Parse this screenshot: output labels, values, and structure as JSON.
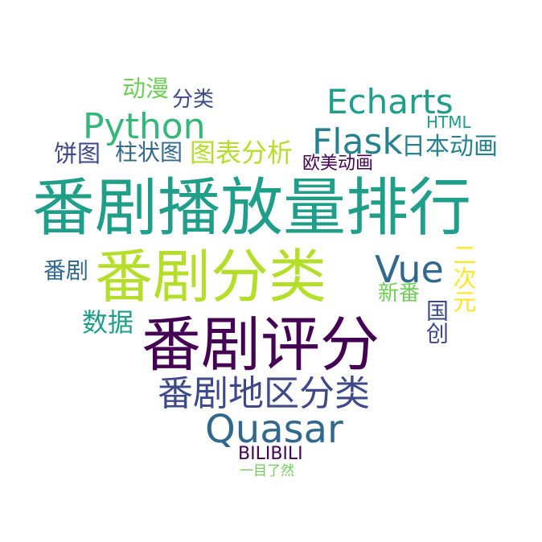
{
  "words": [
    {
      "id": "w-fanjubofangliang",
      "text": "番剧播放量排行",
      "color": "#1f9e89"
    },
    {
      "id": "w-fanjufenlei",
      "text": "番剧分类",
      "color": "#b5de2b"
    },
    {
      "id": "w-fanjupingfen",
      "text": "番剧评分",
      "color": "#440154"
    },
    {
      "id": "w-fanjudiqu",
      "text": "番剧地区分类",
      "color": "#3e4989"
    },
    {
      "id": "w-quasar",
      "text": "Quasar",
      "color": "#31688e"
    },
    {
      "id": "w-python",
      "text": "Python",
      "color": "#35b779"
    },
    {
      "id": "w-echarts",
      "text": "Echarts",
      "color": "#1f9e89"
    },
    {
      "id": "w-flask",
      "text": "Flask",
      "color": "#26828e"
    },
    {
      "id": "w-vue",
      "text": "Vue",
      "color": "#31688e"
    },
    {
      "id": "w-tubiaofenxi",
      "text": "图表分析",
      "color": "#b5de2b"
    },
    {
      "id": "w-dongman",
      "text": "动漫",
      "color": "#6ece58"
    },
    {
      "id": "w-fenlei",
      "text": "分类",
      "color": "#3e4989"
    },
    {
      "id": "w-bingtu",
      "text": "饼图",
      "color": "#3e4989"
    },
    {
      "id": "w-zhuzhuangtu",
      "text": "柱状图",
      "color": "#31688e"
    },
    {
      "id": "w-ribendonghua",
      "text": "日本动画",
      "color": "#26828e"
    },
    {
      "id": "w-html",
      "text": "HTML",
      "color": "#1f9e89"
    },
    {
      "id": "w-oumeidonghua",
      "text": "欧美动画",
      "color": "#440154"
    },
    {
      "id": "w-fanju",
      "text": "番剧",
      "color": "#31688e"
    },
    {
      "id": "w-shuju",
      "text": "数据",
      "color": "#1f9e89"
    },
    {
      "id": "w-xinfan",
      "text": "新番",
      "color": "#6ece58"
    },
    {
      "id": "w-erciyuan",
      "text": "二次元",
      "color": "#fde725"
    },
    {
      "id": "w-guochuang",
      "text": "国创",
      "color": "#3e4989"
    },
    {
      "id": "w-bilibili",
      "text": "BILIBILI",
      "color": "#440154"
    },
    {
      "id": "w-yimuliaoran",
      "text": "一目了然",
      "color": "#6ece58"
    }
  ]
}
